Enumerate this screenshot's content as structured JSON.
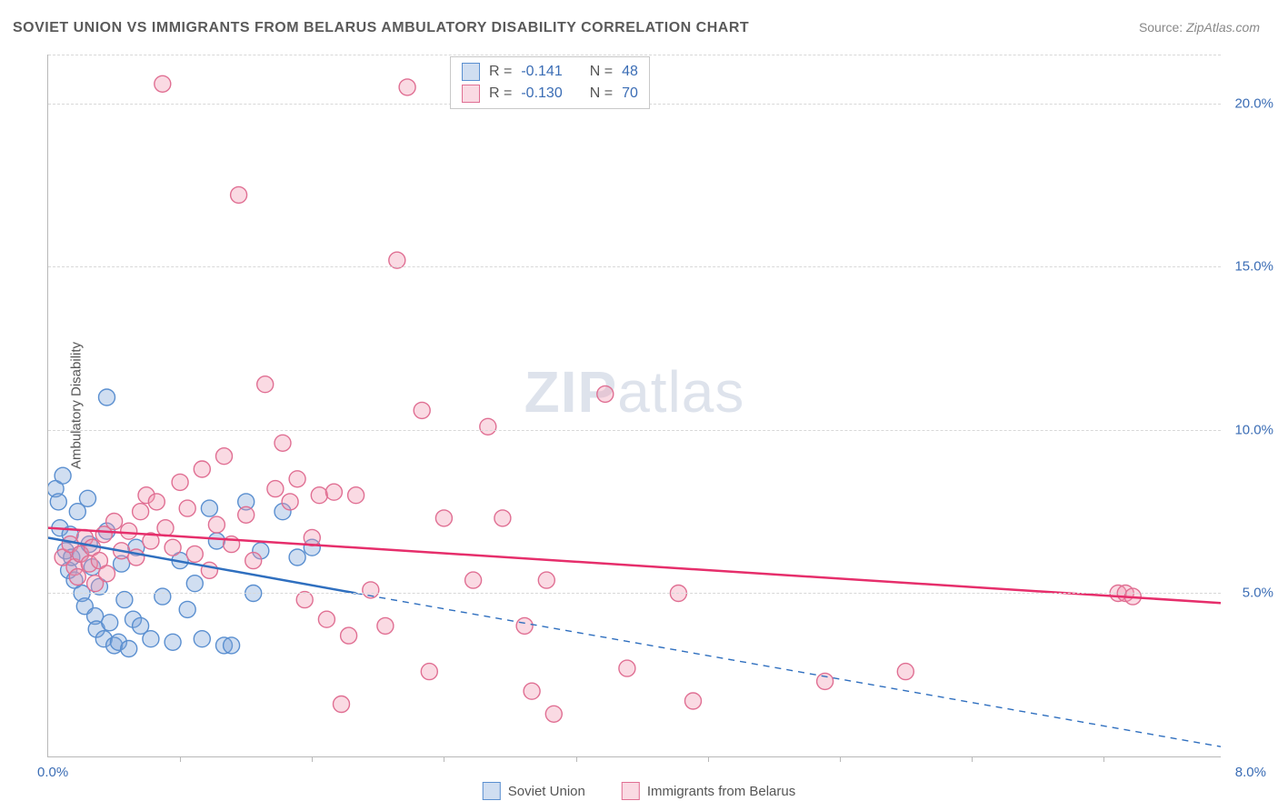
{
  "title": "SOVIET UNION VS IMMIGRANTS FROM BELARUS AMBULATORY DISABILITY CORRELATION CHART",
  "source_label": "Source:",
  "source_name": "ZipAtlas.com",
  "watermark_a": "ZIP",
  "watermark_b": "atlas",
  "y_axis_label": "Ambulatory Disability",
  "chart": {
    "type": "scatter-with-regression",
    "background_color": "#ffffff",
    "grid_color": "#d8d8d8",
    "axis_color": "#b8b8b8",
    "tick_label_color": "#3b6db5",
    "xlim": [
      0.0,
      8.0
    ],
    "ylim": [
      0.0,
      21.5
    ],
    "y_ticks": [
      5.0,
      10.0,
      15.0,
      20.0
    ],
    "y_tick_labels": [
      "5.0%",
      "10.0%",
      "15.0%",
      "20.0%"
    ],
    "x_left_label": "0.0%",
    "x_right_label": "8.0%",
    "x_minor_ticks": [
      0.9,
      1.8,
      2.7,
      3.6,
      4.5,
      5.4,
      6.3,
      7.2
    ],
    "marker_radius": 9,
    "marker_stroke_width": 1.4,
    "series": [
      {
        "id": "soviet",
        "label": "Soviet Union",
        "fill": "rgba(120,160,215,0.35)",
        "stroke": "#5a8fd0",
        "regression": {
          "start": [
            0.0,
            6.7
          ],
          "solid_end": [
            2.1,
            5.0
          ],
          "dash_end": [
            8.0,
            0.3
          ],
          "color": "#2f6fbf",
          "width": 2.5
        },
        "R": "-0.141",
        "N": "48",
        "points": [
          [
            0.05,
            8.2
          ],
          [
            0.07,
            7.8
          ],
          [
            0.08,
            7.0
          ],
          [
            0.1,
            8.6
          ],
          [
            0.12,
            6.3
          ],
          [
            0.14,
            5.7
          ],
          [
            0.15,
            6.8
          ],
          [
            0.16,
            6.1
          ],
          [
            0.18,
            5.4
          ],
          [
            0.2,
            7.5
          ],
          [
            0.22,
            6.2
          ],
          [
            0.23,
            5.0
          ],
          [
            0.25,
            4.6
          ],
          [
            0.27,
            7.9
          ],
          [
            0.28,
            6.5
          ],
          [
            0.3,
            5.8
          ],
          [
            0.32,
            4.3
          ],
          [
            0.33,
            3.9
          ],
          [
            0.35,
            5.2
          ],
          [
            0.38,
            3.6
          ],
          [
            0.4,
            6.9
          ],
          [
            0.4,
            11.0
          ],
          [
            0.42,
            4.1
          ],
          [
            0.45,
            3.4
          ],
          [
            0.48,
            3.5
          ],
          [
            0.5,
            5.9
          ],
          [
            0.52,
            4.8
          ],
          [
            0.55,
            3.3
          ],
          [
            0.58,
            4.2
          ],
          [
            0.6,
            6.4
          ],
          [
            0.63,
            4.0
          ],
          [
            0.7,
            3.6
          ],
          [
            0.78,
            4.9
          ],
          [
            0.85,
            3.5
          ],
          [
            0.9,
            6.0
          ],
          [
            0.95,
            4.5
          ],
          [
            1.0,
            5.3
          ],
          [
            1.05,
            3.6
          ],
          [
            1.1,
            7.6
          ],
          [
            1.15,
            6.6
          ],
          [
            1.2,
            3.4
          ],
          [
            1.25,
            3.4
          ],
          [
            1.35,
            7.8
          ],
          [
            1.4,
            5.0
          ],
          [
            1.45,
            6.3
          ],
          [
            1.6,
            7.5
          ],
          [
            1.7,
            6.1
          ],
          [
            1.8,
            6.4
          ]
        ]
      },
      {
        "id": "belarus",
        "label": "Immigrants from Belarus",
        "fill": "rgba(240,150,175,0.35)",
        "stroke": "#e06f93",
        "regression": {
          "start": [
            0.0,
            7.0
          ],
          "solid_end": [
            8.0,
            4.7
          ],
          "dash_end": null,
          "color": "#e62e6b",
          "width": 2.5
        },
        "R": "-0.130",
        "N": "70",
        "points": [
          [
            0.1,
            6.1
          ],
          [
            0.15,
            6.5
          ],
          [
            0.18,
            5.8
          ],
          [
            0.2,
            5.5
          ],
          [
            0.22,
            6.2
          ],
          [
            0.25,
            6.7
          ],
          [
            0.28,
            5.9
          ],
          [
            0.3,
            6.4
          ],
          [
            0.32,
            5.3
          ],
          [
            0.35,
            6.0
          ],
          [
            0.38,
            6.8
          ],
          [
            0.4,
            5.6
          ],
          [
            0.45,
            7.2
          ],
          [
            0.5,
            6.3
          ],
          [
            0.55,
            6.9
          ],
          [
            0.6,
            6.1
          ],
          [
            0.63,
            7.5
          ],
          [
            0.67,
            8.0
          ],
          [
            0.7,
            6.6
          ],
          [
            0.74,
            7.8
          ],
          [
            0.78,
            20.6
          ],
          [
            0.8,
            7.0
          ],
          [
            0.85,
            6.4
          ],
          [
            0.9,
            8.4
          ],
          [
            0.95,
            7.6
          ],
          [
            1.0,
            6.2
          ],
          [
            1.05,
            8.8
          ],
          [
            1.1,
            5.7
          ],
          [
            1.15,
            7.1
          ],
          [
            1.2,
            9.2
          ],
          [
            1.25,
            6.5
          ],
          [
            1.3,
            17.2
          ],
          [
            1.35,
            7.4
          ],
          [
            1.4,
            6.0
          ],
          [
            1.48,
            11.4
          ],
          [
            1.55,
            8.2
          ],
          [
            1.6,
            9.6
          ],
          [
            1.65,
            7.8
          ],
          [
            1.7,
            8.5
          ],
          [
            1.75,
            4.8
          ],
          [
            1.8,
            6.7
          ],
          [
            1.85,
            8.0
          ],
          [
            1.9,
            4.2
          ],
          [
            1.95,
            8.1
          ],
          [
            2.0,
            1.6
          ],
          [
            2.05,
            3.7
          ],
          [
            2.1,
            8.0
          ],
          [
            2.2,
            5.1
          ],
          [
            2.3,
            4.0
          ],
          [
            2.38,
            15.2
          ],
          [
            2.45,
            20.5
          ],
          [
            2.55,
            10.6
          ],
          [
            2.6,
            2.6
          ],
          [
            2.7,
            7.3
          ],
          [
            2.9,
            5.4
          ],
          [
            3.0,
            10.1
          ],
          [
            3.1,
            7.3
          ],
          [
            3.25,
            4.0
          ],
          [
            3.3,
            2.0
          ],
          [
            3.4,
            5.4
          ],
          [
            3.45,
            1.3
          ],
          [
            3.8,
            11.1
          ],
          [
            3.95,
            2.7
          ],
          [
            4.3,
            5.0
          ],
          [
            4.4,
            1.7
          ],
          [
            5.3,
            2.3
          ],
          [
            5.85,
            2.6
          ],
          [
            7.3,
            5.0
          ],
          [
            7.35,
            5.0
          ],
          [
            7.4,
            4.9
          ]
        ]
      }
    ]
  },
  "correlation_legend": {
    "R_prefix": "R  =",
    "N_prefix": "N  ="
  }
}
